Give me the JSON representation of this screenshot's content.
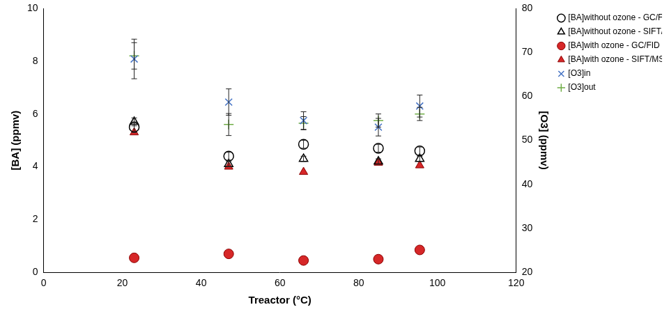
{
  "chart_data": {
    "type": "scatter",
    "x_label": "Treactor (°C)",
    "y_label": "[BA] (ppmv)",
    "y2_label": "[O3] (ppmv)",
    "xlim": [
      0,
      120
    ],
    "xticks": [
      0,
      20,
      40,
      60,
      80,
      100,
      120
    ],
    "ylim": [
      0,
      10
    ],
    "yticks": [
      0,
      2,
      4,
      6,
      8,
      10
    ],
    "y2lim": [
      20,
      80
    ],
    "y2ticks": [
      20,
      30,
      40,
      50,
      60,
      70,
      80
    ],
    "grid": false,
    "legend": "top right",
    "series": [
      {
        "name": "[BA]without ozone - GC/FID",
        "color": "#000000",
        "marker": "open_circle",
        "x": [
          23,
          47,
          66,
          85,
          95.5
        ],
        "values": [
          5.5,
          4.4,
          4.85,
          4.7,
          4.6
        ],
        "errors": [
          0.2,
          0.15,
          0.15,
          0.15,
          0.15
        ]
      },
      {
        "name": "[BA]without ozone - SIFT/MS",
        "color": "#000000",
        "marker": "open_triangle",
        "x": [
          23,
          47,
          66,
          85,
          95.5
        ],
        "values": [
          5.7,
          4.1,
          4.3,
          4.2,
          4.3
        ],
        "errors": [
          0.15,
          0.1,
          0.1,
          0.1,
          0.1
        ]
      },
      {
        "name": "[BA]with ozone - GC/FID",
        "color": "#d62728",
        "marker": "circle",
        "x": [
          23,
          47,
          66,
          85,
          95.5
        ],
        "values": [
          0.55,
          0.7,
          0.45,
          0.5,
          0.85
        ]
      },
      {
        "name": "[BA]with ozone - SIFT/MS",
        "color": "#d62728",
        "marker": "triangle",
        "x": [
          23,
          47,
          66,
          85,
          95.5
        ],
        "values": [
          5.3,
          4.0,
          3.8,
          4.15,
          4.05
        ]
      },
      {
        "name": "[O3]in",
        "color": "#4472c4",
        "marker": "x",
        "axis": "y2",
        "x": [
          23,
          47,
          66,
          85,
          95.5
        ],
        "values": [
          68.5,
          58.7,
          54.5,
          53,
          57.8
        ],
        "errors": [
          4.5,
          3,
          2,
          2,
          2.5
        ]
      },
      {
        "name": "[O3]out",
        "color": "#70ad47",
        "marker": "plus",
        "axis": "y2",
        "x": [
          23,
          47,
          66,
          85,
          95.5
        ],
        "values": [
          69.2,
          53.6,
          53.9,
          54.5,
          56
        ],
        "errors": [
          3,
          2.5,
          1.5,
          1.5,
          1.5
        ]
      }
    ]
  }
}
